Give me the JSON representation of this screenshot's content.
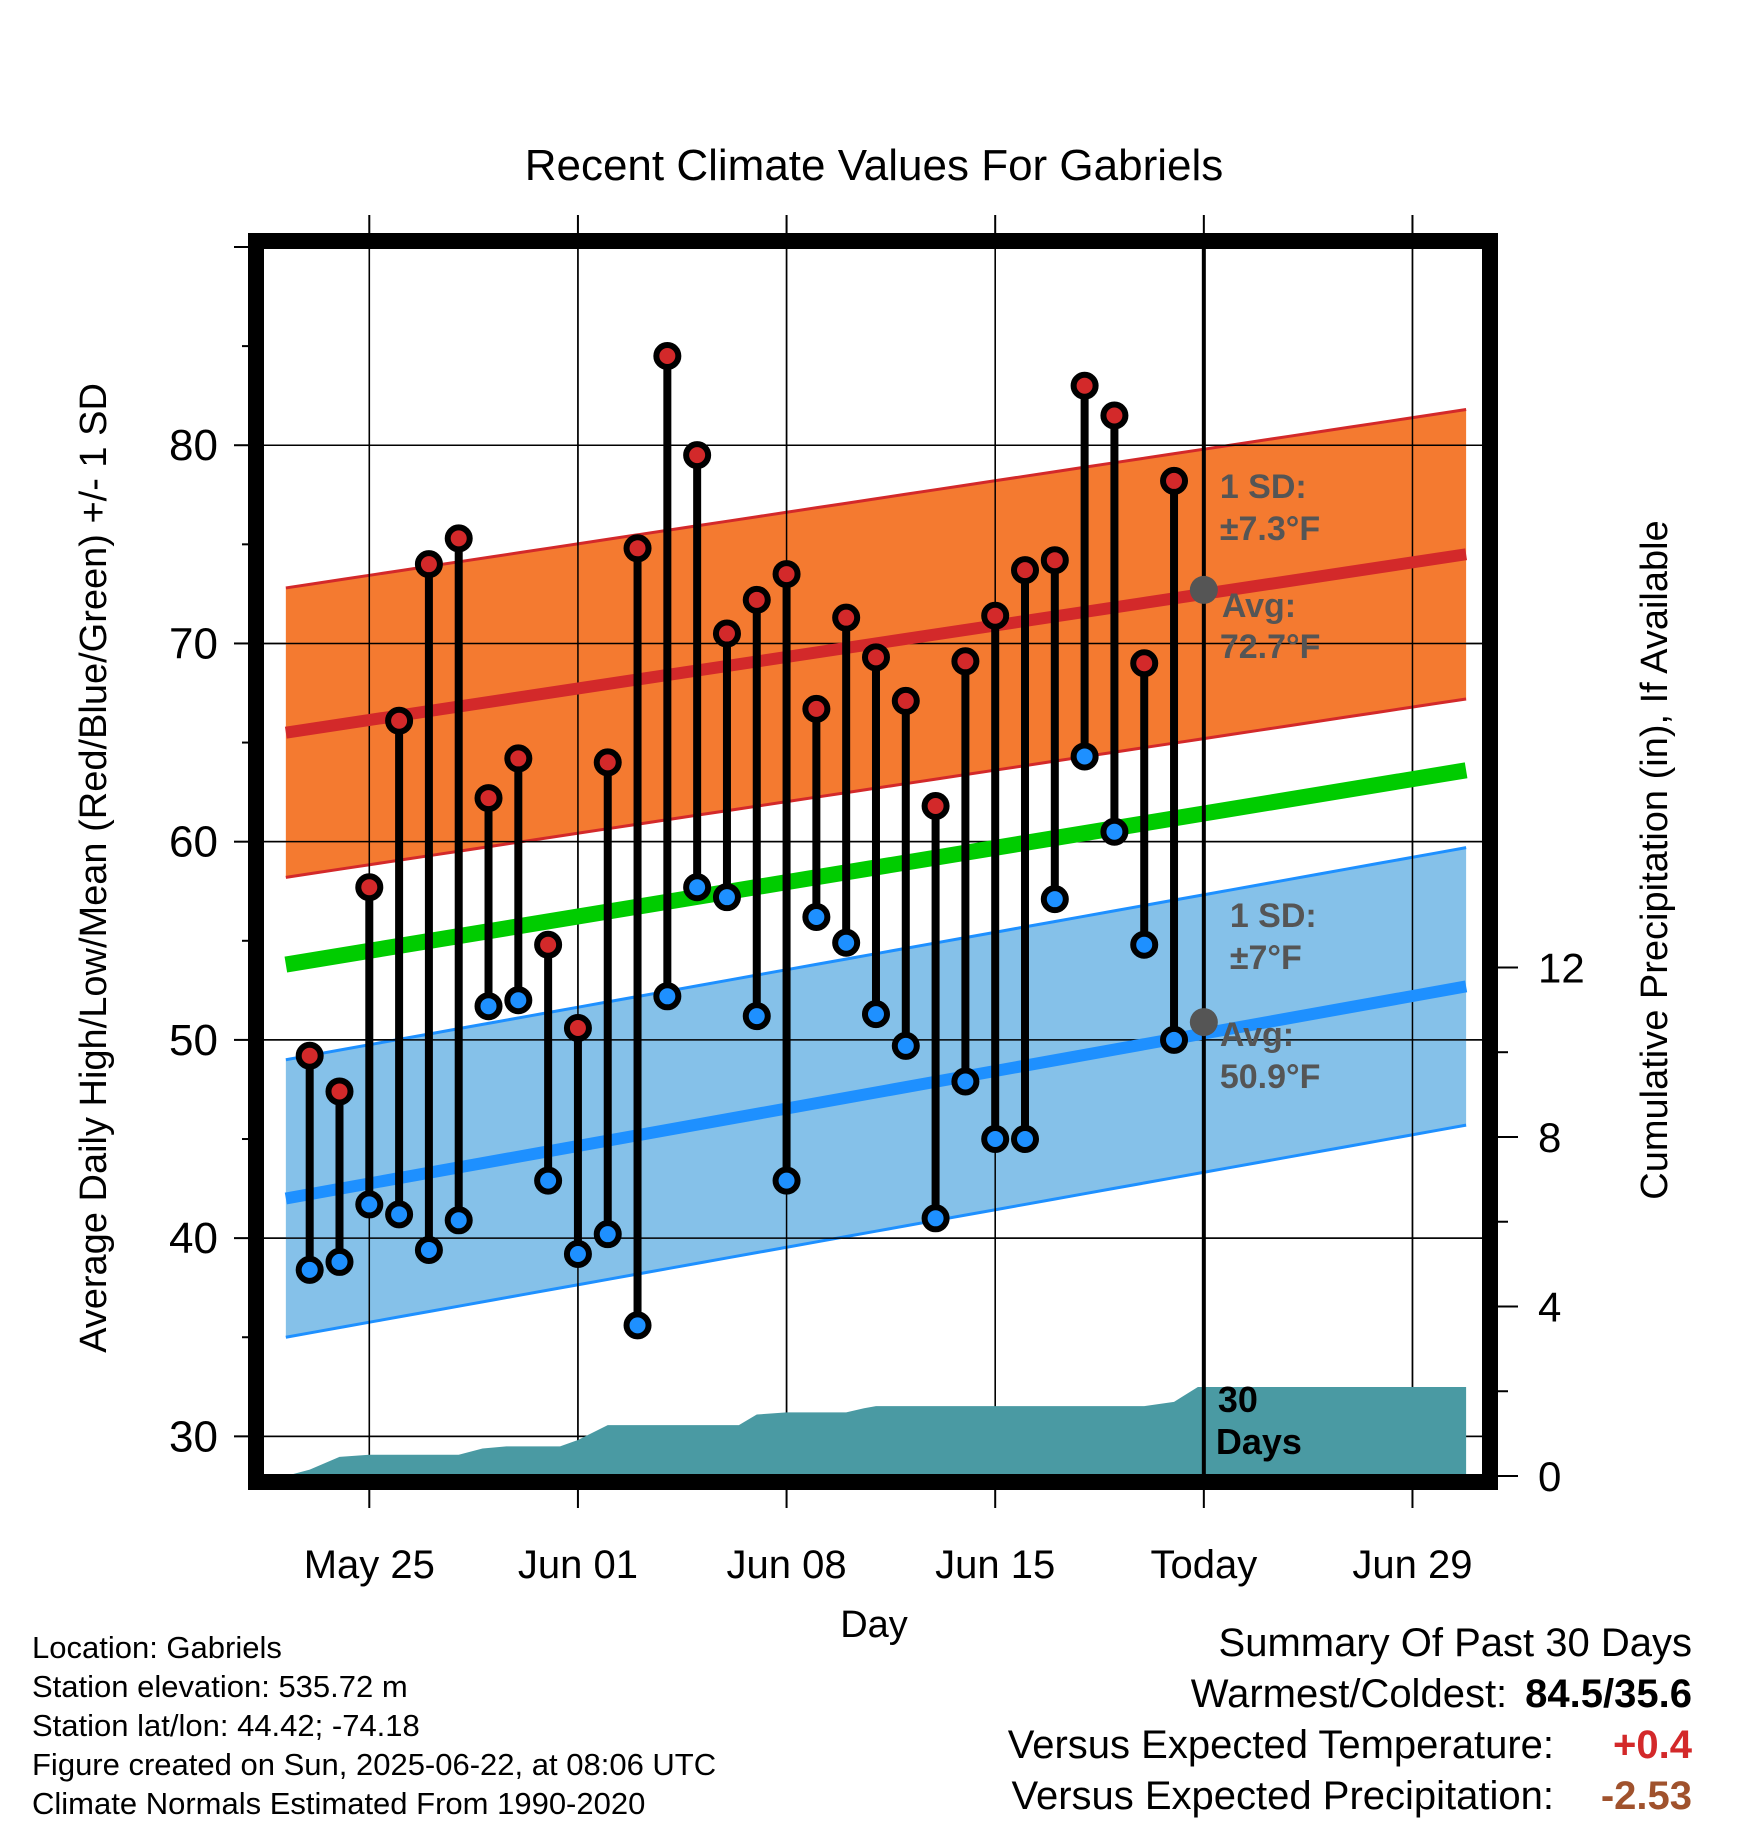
{
  "chart_data": {
    "type": "line",
    "title": "Recent Climate Values For Gabriels",
    "xlabel": "Day",
    "ylabel_left": "Average Daily High/Low/Mean (Red/Blue/Green) +/- 1 SD",
    "ylabel_right": "Cumulative Precipitation (in), If Available",
    "ylim_left": [
      28,
      90
    ],
    "ylim_right": [
      0,
      29
    ],
    "yticks_left": [
      30,
      40,
      50,
      60,
      70,
      80
    ],
    "yticks_right": [
      0,
      4,
      8,
      12
    ],
    "xlim": [
      -3.6,
      37.4
    ],
    "x_ticks": [
      {
        "day": 0,
        "label": "May 25"
      },
      {
        "day": 7,
        "label": "Jun 01"
      },
      {
        "day": 14,
        "label": "Jun 08"
      },
      {
        "day": 21,
        "label": "Jun 15"
      },
      {
        "day": 28,
        "label": "Today"
      },
      {
        "day": 35,
        "label": "Jun 29"
      }
    ],
    "today_day": 28,
    "grid": true,
    "normals": {
      "high_avg": {
        "x": [
          -2.8,
          36.8
        ],
        "y": [
          65.5,
          74.5
        ]
      },
      "high_sd": 7.3,
      "mean_avg": {
        "x": [
          -2.8,
          36.8
        ],
        "y": [
          53.8,
          63.6
        ]
      },
      "low_avg": {
        "x": [
          -2.8,
          36.8
        ],
        "y": [
          42.0,
          52.7
        ]
      },
      "low_sd": 7
    },
    "annotations": {
      "high_sd_label": "1 SD:",
      "high_sd_value": "±7.3°F",
      "high_avg_label": "Avg:",
      "high_avg_value": "72.7°F",
      "low_sd_label": "1 SD:",
      "low_sd_value": "±7°F",
      "low_avg_label": "Avg:",
      "low_avg_value": "50.9°F",
      "days_label_1": "30",
      "days_label_2": "Days"
    },
    "today_markers": {
      "high": 72.7,
      "low": 50.9
    },
    "daily": {
      "day": [
        -2,
        -1,
        0,
        1,
        2,
        3,
        4,
        5,
        6,
        7,
        8,
        9,
        10,
        11,
        12,
        13,
        14,
        15,
        16,
        17,
        18,
        19,
        20,
        21,
        22,
        23,
        24,
        25,
        26,
        27,
        28
      ],
      "high": [
        49.2,
        47.4,
        57.7,
        66.1,
        74.0,
        75.3,
        62.2,
        64.2,
        54.8,
        50.6,
        64.0,
        74.8,
        84.5,
        79.5,
        70.5,
        72.2,
        73.5,
        66.7,
        71.3,
        69.3,
        67.1,
        61.8,
        69.1,
        71.4,
        73.7,
        74.2,
        83.0,
        81.5,
        69.0,
        78.2,
        null
      ],
      "low": [
        38.4,
        38.8,
        41.7,
        41.2,
        39.4,
        40.9,
        51.7,
        52.0,
        42.9,
        39.2,
        40.2,
        35.6,
        52.2,
        57.7,
        57.2,
        51.2,
        42.9,
        56.2,
        54.9,
        51.3,
        49.7,
        41.0,
        47.9,
        45.0,
        45.0,
        57.1,
        64.3,
        60.5,
        54.8,
        50.0,
        null
      ]
    },
    "precip_cumulative": {
      "x": [
        -2.8,
        -2.0,
        -1.0,
        0.0,
        1.0,
        2.0,
        3.0,
        3.8,
        4.6,
        5.0,
        6.0,
        6.4,
        7.0,
        8.0,
        9.0,
        10.0,
        11.0,
        11.9,
        12.4,
        13.0,
        14.0,
        15.0,
        16.0,
        16.6,
        17.0,
        18.0,
        19.0,
        20.0,
        21.0,
        22.0,
        23.0,
        24.0,
        25.0,
        26.0,
        27.0,
        27.8,
        28.0,
        29.0,
        30.0,
        31.0,
        32.0,
        33.0,
        34.0,
        35.0,
        36.8
      ],
      "y": [
        0.0,
        0.15,
        0.45,
        0.5,
        0.5,
        0.5,
        0.5,
        0.65,
        0.7,
        0.7,
        0.7,
        0.7,
        0.85,
        1.2,
        1.2,
        1.2,
        1.2,
        1.2,
        1.2,
        1.45,
        1.5,
        1.5,
        1.5,
        1.6,
        1.65,
        1.65,
        1.65,
        1.65,
        1.65,
        1.65,
        1.65,
        1.65,
        1.65,
        1.65,
        1.75,
        2.1,
        2.1,
        2.1,
        2.1,
        2.1,
        2.1,
        2.1,
        2.1,
        2.1,
        2.1
      ]
    }
  },
  "info": {
    "location": "Location: Gabriels",
    "elevation": "Station elevation: 535.72 m",
    "latlon": "Station lat/lon: 44.42; -74.18",
    "created": "Figure created on Sun, 2025-06-22, at 08:06 UTC",
    "normals": "Climate Normals Estimated From 1990-2020"
  },
  "summary": {
    "title": "Summary Of Past 30 Days",
    "warm_cold_label": "Warmest/Coldest:",
    "warm_cold_value": "84.5/35.6",
    "temp_label": "Versus Expected Temperature:",
    "temp_value": "+0.4",
    "precip_label": "Versus Expected Precipitation:",
    "precip_value": "-2.53"
  },
  "colors": {
    "high": "#d3292a",
    "high_band": "#f47a30",
    "low": "#1e90ff",
    "low_band": "#85c1e9",
    "mean": "#00cc00",
    "precip": "#4a9aa3",
    "annotation": "#555555"
  }
}
